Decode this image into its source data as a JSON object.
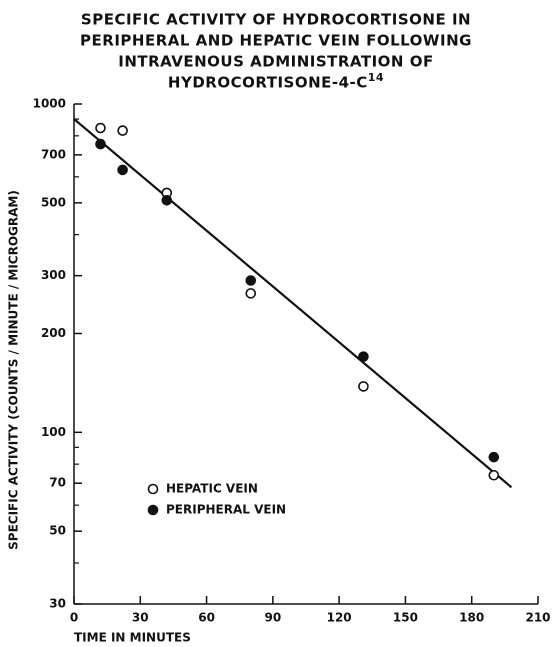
{
  "chart_data": {
    "type": "scatter",
    "title": [
      "SPECIFIC ACTIVITY OF HYDROCORTISONE IN",
      "PERIPHERAL AND HEPATIC VEIN FOLLOWING",
      "INTRAVENOUS ADMINISTRATION OF",
      "HYDROCORTISONE-4-C"
    ],
    "title_superscript": "14",
    "x_label": "TIME IN MINUTES",
    "y_label": "SPECIFIC ACTIVITY (COUNTS / MINUTE / MICROGRAM)",
    "xlim": [
      0,
      210
    ],
    "xticks": [
      0,
      30,
      60,
      90,
      120,
      150,
      180,
      210
    ],
    "ylim": [
      30,
      1000
    ],
    "yticks": [
      30,
      50,
      70,
      100,
      200,
      300,
      500,
      700,
      1000
    ],
    "yminor_ticks": [
      40,
      60,
      80,
      90,
      400,
      600,
      800,
      900
    ],
    "log_y": true,
    "legend_position": "lower left",
    "series": [
      {
        "name": "HEPATIC VEIN",
        "marker": "open",
        "color": "#111",
        "x": [
          12,
          22,
          42,
          80,
          131,
          190
        ],
        "values": [
          845,
          830,
          536,
          265,
          138,
          74
        ]
      },
      {
        "name": "PERIPHERAL VEIN",
        "marker": "filled",
        "color": "#111",
        "x": [
          12,
          22,
          42,
          80,
          131,
          190
        ],
        "values": [
          755,
          630,
          509,
          290,
          170,
          84
        ]
      }
    ],
    "fit_line": {
      "x": [
        0,
        198
      ],
      "values": [
        900,
        68
      ]
    }
  }
}
